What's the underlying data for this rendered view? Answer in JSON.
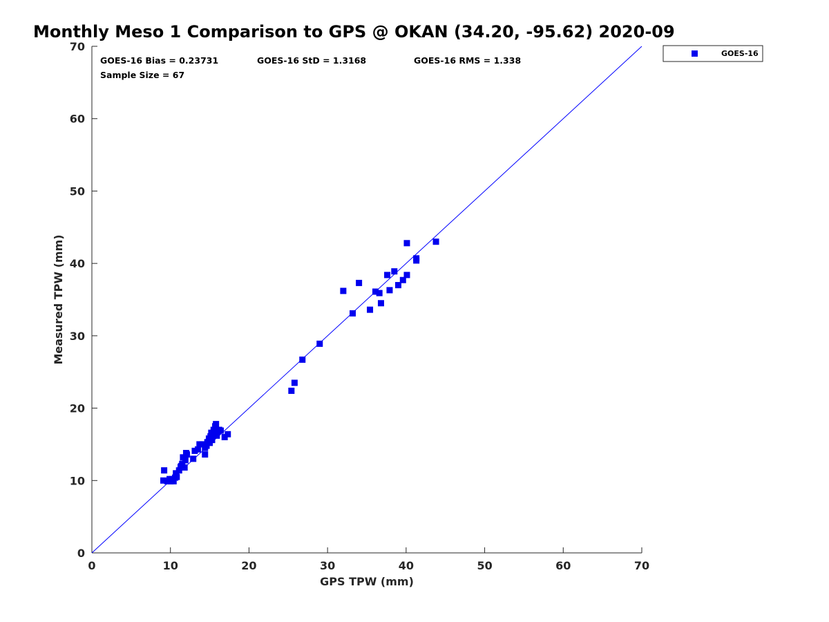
{
  "chart_data": {
    "type": "scatter",
    "title": "Monthly Meso 1 Comparison to GPS @ OKAN (34.20, -95.62) 2020-09",
    "xlabel": "GPS TPW (mm)",
    "ylabel": "Measured TPW (mm)",
    "xlim": [
      0,
      70
    ],
    "ylim": [
      0,
      70
    ],
    "xticks": [
      0,
      10,
      20,
      30,
      40,
      50,
      60,
      70
    ],
    "yticks": [
      0,
      10,
      20,
      30,
      40,
      50,
      60,
      70
    ],
    "xtick_labels": [
      "0",
      "10",
      "20",
      "30",
      "40",
      "50",
      "60",
      "70"
    ],
    "ytick_labels": [
      "0",
      "10",
      "20",
      "30",
      "40",
      "50",
      "60",
      "70"
    ],
    "grid": false,
    "legend_position": "top-right outside",
    "marker_color": "#0000ee",
    "line_color": "#0000ff",
    "reference_line": {
      "from": [
        0,
        0
      ],
      "to": [
        70,
        70
      ]
    },
    "stats": {
      "bias": "GOES-16 Bias = 0.23731",
      "std": "GOES-16 StD = 1.3168",
      "rms": "GOES-16 RMS = 1.338",
      "sample": "Sample Size = 67"
    },
    "series": [
      {
        "name": "GOES-16",
        "points": [
          [
            9.1,
            10.0
          ],
          [
            9.2,
            11.4
          ],
          [
            9.6,
            9.9
          ],
          [
            9.9,
            10.2
          ],
          [
            10.0,
            9.9
          ],
          [
            10.2,
            10.2
          ],
          [
            10.4,
            9.9
          ],
          [
            10.6,
            10.4
          ],
          [
            10.7,
            11.0
          ],
          [
            10.8,
            10.5
          ],
          [
            11.1,
            11.4
          ],
          [
            11.3,
            11.9
          ],
          [
            11.5,
            12.3
          ],
          [
            11.6,
            13.2
          ],
          [
            11.8,
            11.8
          ],
          [
            11.9,
            12.8
          ],
          [
            12.0,
            13.8
          ],
          [
            12.9,
            13.0
          ],
          [
            13.1,
            14.1
          ],
          [
            13.5,
            14.3
          ],
          [
            13.7,
            15.0
          ],
          [
            14.1,
            15.0
          ],
          [
            14.4,
            14.5
          ],
          [
            14.4,
            13.6
          ],
          [
            14.6,
            14.8
          ],
          [
            14.7,
            15.3
          ],
          [
            14.9,
            15.8
          ],
          [
            15.0,
            15.2
          ],
          [
            15.1,
            16.1
          ],
          [
            15.2,
            16.6
          ],
          [
            15.3,
            15.6
          ],
          [
            15.4,
            16.3
          ],
          [
            15.5,
            17.0
          ],
          [
            15.6,
            16.4
          ],
          [
            15.7,
            17.5
          ],
          [
            15.8,
            17.8
          ],
          [
            15.9,
            16.2
          ],
          [
            16.0,
            16.8
          ],
          [
            16.2,
            17.0
          ],
          [
            16.4,
            16.9
          ],
          [
            16.9,
            16.0
          ],
          [
            17.3,
            16.4
          ],
          [
            25.4,
            22.4
          ],
          [
            25.8,
            23.5
          ],
          [
            26.8,
            26.7
          ],
          [
            29.0,
            28.9
          ],
          [
            32.0,
            36.2
          ],
          [
            33.2,
            33.1
          ],
          [
            34.0,
            37.3
          ],
          [
            35.4,
            33.6
          ],
          [
            36.1,
            36.1
          ],
          [
            36.6,
            35.9
          ],
          [
            36.8,
            34.5
          ],
          [
            37.6,
            38.4
          ],
          [
            37.9,
            36.3
          ],
          [
            38.5,
            38.9
          ],
          [
            39.0,
            37.0
          ],
          [
            39.6,
            37.7
          ],
          [
            40.1,
            38.4
          ],
          [
            40.1,
            42.8
          ],
          [
            41.3,
            40.7
          ],
          [
            41.3,
            40.4
          ],
          [
            43.8,
            43.0
          ],
          [
            14.9,
            15.4
          ],
          [
            15.6,
            16.8
          ],
          [
            12.1,
            13.6
          ],
          [
            11.4,
            12.0
          ]
        ]
      }
    ]
  }
}
